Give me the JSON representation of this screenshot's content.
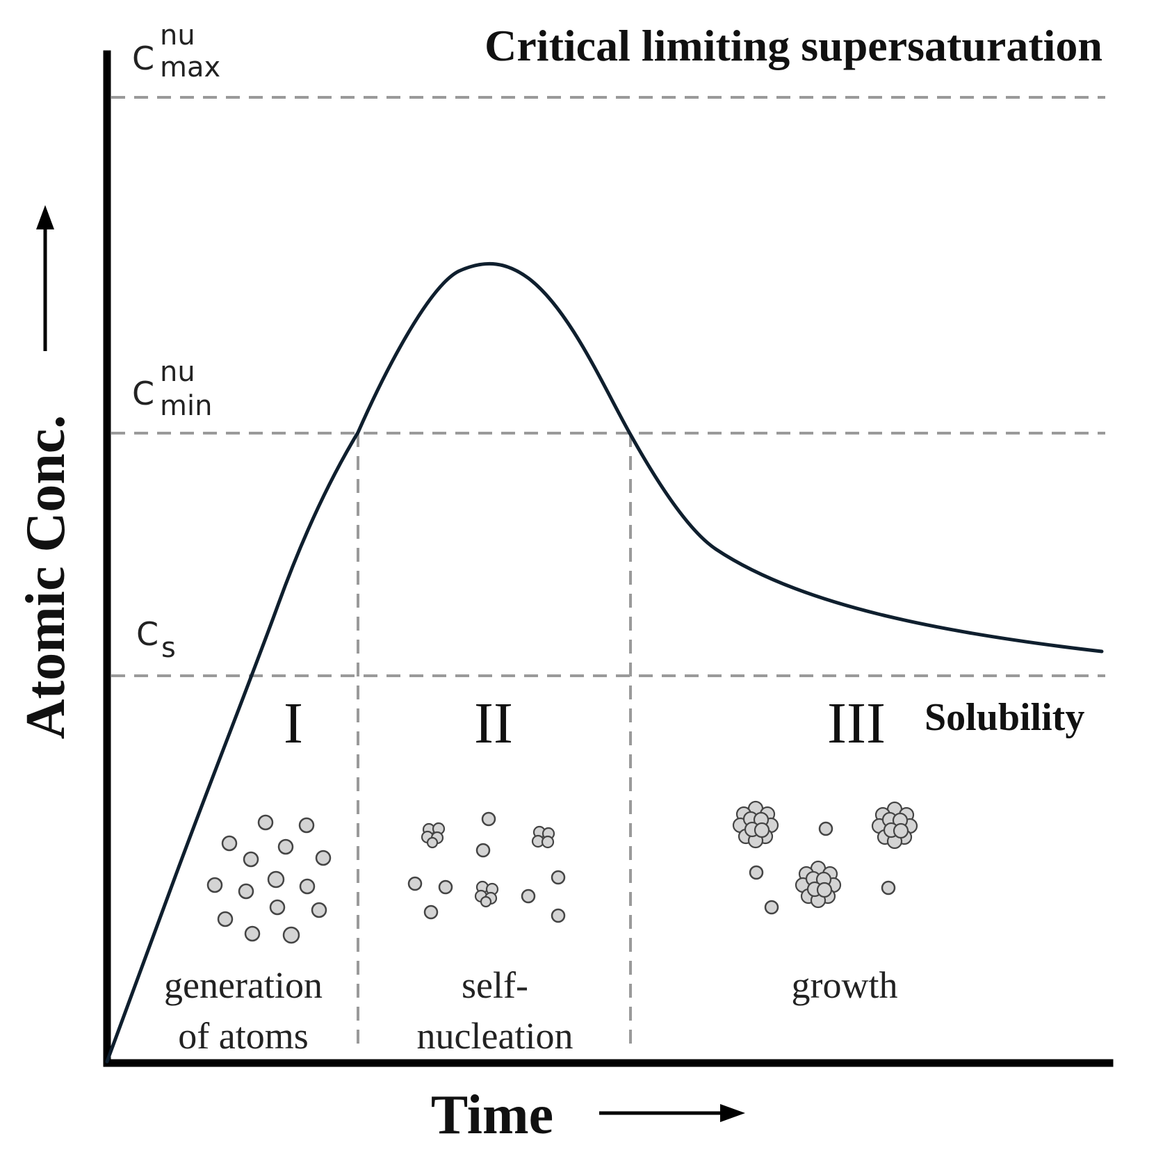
{
  "title": "Critical limiting supersaturation",
  "y_axis_label": "Atomic Conc.",
  "x_axis_label": "Time",
  "levels": {
    "c_max": {
      "base": "C",
      "sup": "nu",
      "sub": "max"
    },
    "c_min": {
      "base": "C",
      "sup": "nu",
      "sub": "min"
    },
    "c_s": {
      "base": "C",
      "sub": "s"
    }
  },
  "solubility_label": "Solubility",
  "stages": [
    {
      "numeral": "I",
      "caption_lines": [
        "generation",
        "of atoms"
      ]
    },
    {
      "numeral": "II",
      "caption_lines": [
        "self-",
        "nucleation"
      ]
    },
    {
      "numeral": "III",
      "caption_lines": [
        "growth"
      ]
    }
  ],
  "colors": {
    "curve": "#0f1f2e",
    "guide": "#9a9a9a",
    "particle_fill": "#d4d4d4",
    "particle_stroke": "#444444"
  }
}
